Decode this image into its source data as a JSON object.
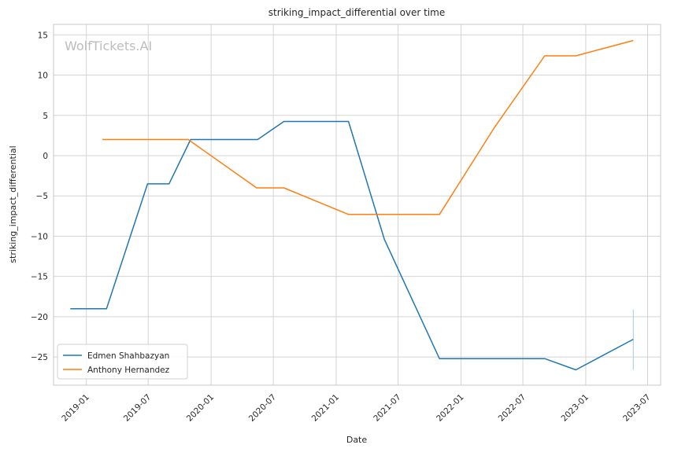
{
  "watermark": "WolfTickets.AI",
  "chart_data": {
    "type": "line",
    "title": "striking_impact_differential over time",
    "xlabel": "Date",
    "ylabel": "striking_impact_differential",
    "xlim": [
      "2018-09-27",
      "2023-08-08"
    ],
    "ylim": [
      -28.5,
      16.3
    ],
    "x_ticks": [
      "2019-01",
      "2019-07",
      "2020-01",
      "2020-07",
      "2021-01",
      "2021-07",
      "2022-01",
      "2022-07",
      "2023-01",
      "2023-07"
    ],
    "y_ticks": [
      15,
      10,
      5,
      0,
      -5,
      -10,
      -15,
      -20,
      -25
    ],
    "grid": true,
    "legend": "lower-left",
    "series": [
      {
        "name": "Edmen Shahbazyan",
        "color": "#1f77b4",
        "points": [
          {
            "x": "2018-11-15",
            "y": -19.0
          },
          {
            "x": "2019-03-01",
            "y": -19.0
          },
          {
            "x": "2019-06-29",
            "y": -3.5
          },
          {
            "x": "2019-08-31",
            "y": -3.5
          },
          {
            "x": "2019-11-02",
            "y": 2.0
          },
          {
            "x": "2020-05-16",
            "y": 2.0
          },
          {
            "x": "2020-08-01",
            "y": 4.25
          },
          {
            "x": "2021-02-06",
            "y": 4.25
          },
          {
            "x": "2021-05-22",
            "y": -10.4
          },
          {
            "x": "2021-10-30",
            "y": -25.2
          },
          {
            "x": "2022-09-03",
            "y": -25.2
          },
          {
            "x": "2022-12-03",
            "y": -26.6
          },
          {
            "x": "2023-05-20",
            "y": -22.8
          }
        ]
      },
      {
        "name": "Anthony Hernandez",
        "color": "#ff7f0e",
        "points": [
          {
            "x": "2019-02-17",
            "y": 2.0
          },
          {
            "x": "2019-10-26",
            "y": 2.0
          },
          {
            "x": "2020-05-13",
            "y": -4.0
          },
          {
            "x": "2020-08-01",
            "y": -4.0
          },
          {
            "x": "2021-02-06",
            "y": -7.3
          },
          {
            "x": "2021-10-30",
            "y": -7.3
          },
          {
            "x": "2022-04-09",
            "y": 3.5
          },
          {
            "x": "2022-09-03",
            "y": 12.4
          },
          {
            "x": "2022-12-03",
            "y": 12.4
          },
          {
            "x": "2023-05-20",
            "y": 14.3
          }
        ]
      }
    ],
    "error_bar": {
      "x": "2023-05-20",
      "y_low": -26.6,
      "y_high": -19.1,
      "color": "#a6c8e4"
    }
  }
}
